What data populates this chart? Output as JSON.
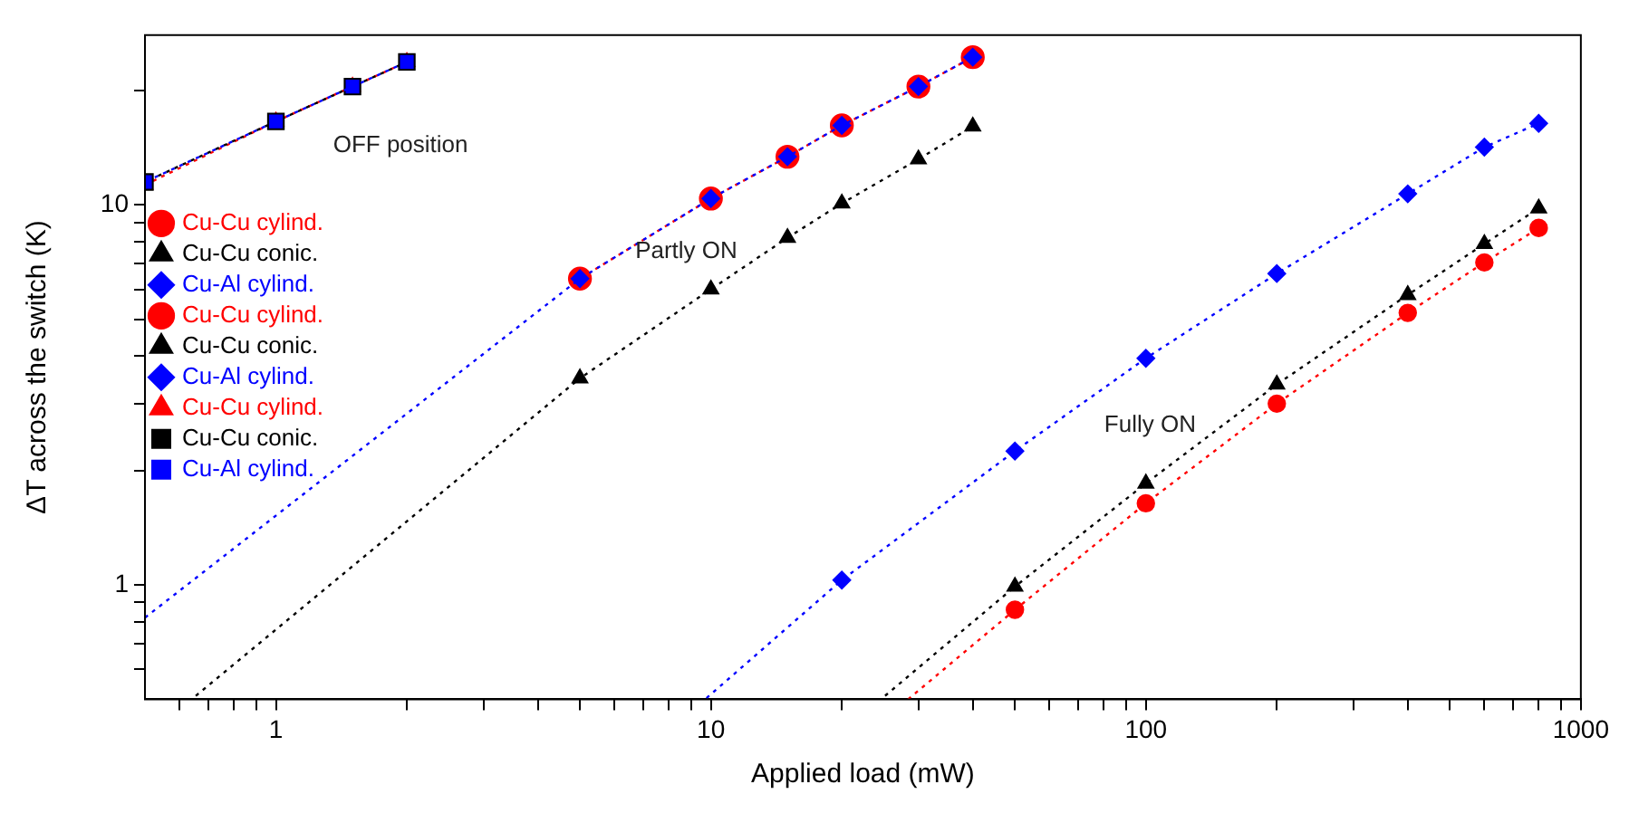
{
  "chart_data": {
    "type": "line",
    "xlabel": "Applied load (mW)",
    "ylabel": "ΔT across the switch (K)",
    "log": "xy",
    "grid": false,
    "legend": "left",
    "line_style": "dotted",
    "xlim": [
      0.5,
      1000
    ],
    "ylim": [
      0.5,
      28
    ],
    "xticks": [
      {
        "value": 0.6,
        "label": null
      },
      {
        "value": 0.7,
        "label": null
      },
      {
        "value": 0.8,
        "label": null
      },
      {
        "value": 0.9,
        "label": null
      },
      1,
      {
        "value": 2,
        "label": null
      },
      {
        "value": 3,
        "label": null
      },
      {
        "value": 4,
        "label": null
      },
      {
        "value": 5,
        "label": null
      },
      {
        "value": 6,
        "label": null
      },
      {
        "value": 7,
        "label": null
      },
      {
        "value": 8,
        "label": null
      },
      {
        "value": 9,
        "label": null
      },
      10,
      {
        "value": 20,
        "label": null
      },
      {
        "value": 30,
        "label": null
      },
      {
        "value": 40,
        "label": null
      },
      {
        "value": 50,
        "label": null
      },
      {
        "value": 60,
        "label": null
      },
      {
        "value": 70,
        "label": null
      },
      {
        "value": 80,
        "label": null
      },
      {
        "value": 90,
        "label": null
      },
      100,
      {
        "value": 200,
        "label": null
      },
      {
        "value": 300,
        "label": null
      },
      {
        "value": 400,
        "label": null
      },
      {
        "value": 500,
        "label": null
      },
      {
        "value": 600,
        "label": null
      },
      {
        "value": 700,
        "label": null
      },
      {
        "value": 800,
        "label": null
      },
      {
        "value": 900,
        "label": null
      },
      1000
    ],
    "yticks": [
      {
        "value": 0.6,
        "label": null
      },
      {
        "value": 0.7,
        "label": null
      },
      {
        "value": 0.8,
        "label": null
      },
      {
        "value": 0.9,
        "label": null
      },
      1,
      {
        "value": 2,
        "label": null
      },
      {
        "value": 3,
        "label": null
      },
      {
        "value": 4,
        "label": null
      },
      {
        "value": 5,
        "label": null
      },
      {
        "value": 6,
        "label": null
      },
      {
        "value": 7,
        "label": null
      },
      {
        "value": 8,
        "label": null
      },
      {
        "value": 9,
        "label": null
      },
      10,
      {
        "value": 20,
        "label": null
      }
    ],
    "annotations": [
      "OFF position",
      "Partly ON",
      "Fully ON"
    ],
    "series": [
      {
        "name": "Cu-Cu cylind.",
        "color": "#ff0000",
        "marker": "circle",
        "x": [
          50,
          100,
          200,
          400,
          600,
          800
        ],
        "values": [
          0.86,
          1.64,
          3.0,
          5.2,
          7.06,
          8.7
        ]
      },
      {
        "name": "Cu-Cu conic.",
        "color": "#000000",
        "marker": "triangle",
        "x": [
          50,
          100,
          200,
          400,
          600,
          800
        ],
        "values": [
          0.99,
          1.85,
          3.37,
          5.8,
          7.9,
          9.8
        ]
      },
      {
        "name": "Cu-Al cylind.",
        "color": "#0000ff",
        "marker": "diamond",
        "x": [
          20,
          50,
          100,
          200,
          400,
          600,
          800
        ],
        "values": [
          1.03,
          2.25,
          3.95,
          6.6,
          10.7,
          14.2,
          16.4
        ]
      },
      {
        "name": "Cu-Cu cylind.",
        "color": "#ff0000",
        "marker": "circle",
        "x": [
          5,
          10,
          15,
          20,
          30,
          40
        ],
        "values": [
          6.4,
          10.4,
          13.4,
          16.2,
          20.5,
          24.5
        ]
      },
      {
        "name": "Cu-Cu conic.",
        "color": "#000000",
        "marker": "triangle",
        "x": [
          5,
          10,
          15,
          20,
          30,
          40
        ],
        "values": [
          3.5,
          6.0,
          8.2,
          10.1,
          13.2,
          16.1
        ]
      },
      {
        "name": "Cu-Al cylind.",
        "color": "#0000ff",
        "marker": "diamond",
        "x": [
          5,
          10,
          15,
          20,
          30,
          40
        ],
        "values": [
          6.4,
          10.4,
          13.4,
          16.2,
          20.5,
          24.5
        ]
      },
      {
        "name": "Cu-Cu cylind.",
        "color": "#ff0000",
        "marker": "triangle",
        "x": [
          0.5,
          1,
          1.5,
          2
        ],
        "values": [
          11.3,
          16.6,
          20.5,
          23.8
        ]
      },
      {
        "name": "Cu-Cu conic.",
        "color": "#000000",
        "marker": "square",
        "x": [
          0.5,
          1,
          1.5,
          2
        ],
        "values": [
          11.5,
          16.6,
          20.5,
          23.8
        ]
      },
      {
        "name": "Cu-Al cylind.",
        "color": "#0000ff",
        "marker": "square",
        "x": [
          0.5,
          1,
          1.5,
          2
        ],
        "values": [
          11.5,
          16.6,
          20.5,
          23.8
        ]
      },
      {
        "type": "line",
        "marker": "none",
        "color": "#ff0000",
        "x": [
          28.4,
          50
        ],
        "values": [
          0.5,
          0.86
        ]
      },
      {
        "type": "line",
        "marker": "none",
        "color": "#000000",
        "x": [
          24.6,
          50
        ],
        "values": [
          0.5,
          0.99
        ]
      },
      {
        "type": "line",
        "marker": "none",
        "color": "#0000ff",
        "x": [
          9.7,
          20
        ],
        "values": [
          0.5,
          1.03
        ]
      },
      {
        "type": "line",
        "marker": "none",
        "color": "#0000ff",
        "x": [
          0.5,
          5
        ],
        "values": [
          0.82,
          6.4
        ]
      },
      {
        "type": "line",
        "marker": "none",
        "color": "#000000",
        "x": [
          0.64,
          5
        ],
        "values": [
          0.5,
          3.5
        ]
      }
    ]
  }
}
